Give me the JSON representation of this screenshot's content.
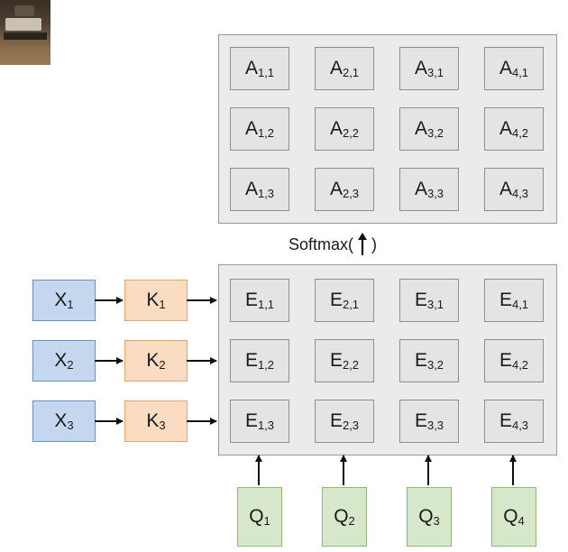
{
  "a_matrix": {
    "symbol": "A",
    "rows": [
      [
        "1,1",
        "2,1",
        "3,1",
        "4,1"
      ],
      [
        "1,2",
        "2,2",
        "3,2",
        "4,2"
      ],
      [
        "1,3",
        "2,3",
        "3,3",
        "4,3"
      ]
    ]
  },
  "softmax": {
    "label": "Softmax(",
    "close": ")"
  },
  "e_matrix": {
    "symbol": "E",
    "rows": [
      [
        "1,1",
        "2,1",
        "3,1",
        "4,1"
      ],
      [
        "1,2",
        "2,2",
        "3,2",
        "4,2"
      ],
      [
        "1,3",
        "2,3",
        "3,3",
        "4,3"
      ]
    ]
  },
  "inputs": {
    "x_symbol": "X",
    "x_subs": [
      "1",
      "2",
      "3"
    ],
    "k_symbol": "K",
    "k_subs": [
      "1",
      "2",
      "3"
    ]
  },
  "queries": {
    "symbol": "Q",
    "subs": [
      "1",
      "2",
      "3",
      "4"
    ]
  },
  "colors": {
    "x_fill": "#c5d6ef",
    "k_fill": "#f9dcc2",
    "q_fill": "#d6e8c9",
    "panel": "#ebebeb"
  }
}
